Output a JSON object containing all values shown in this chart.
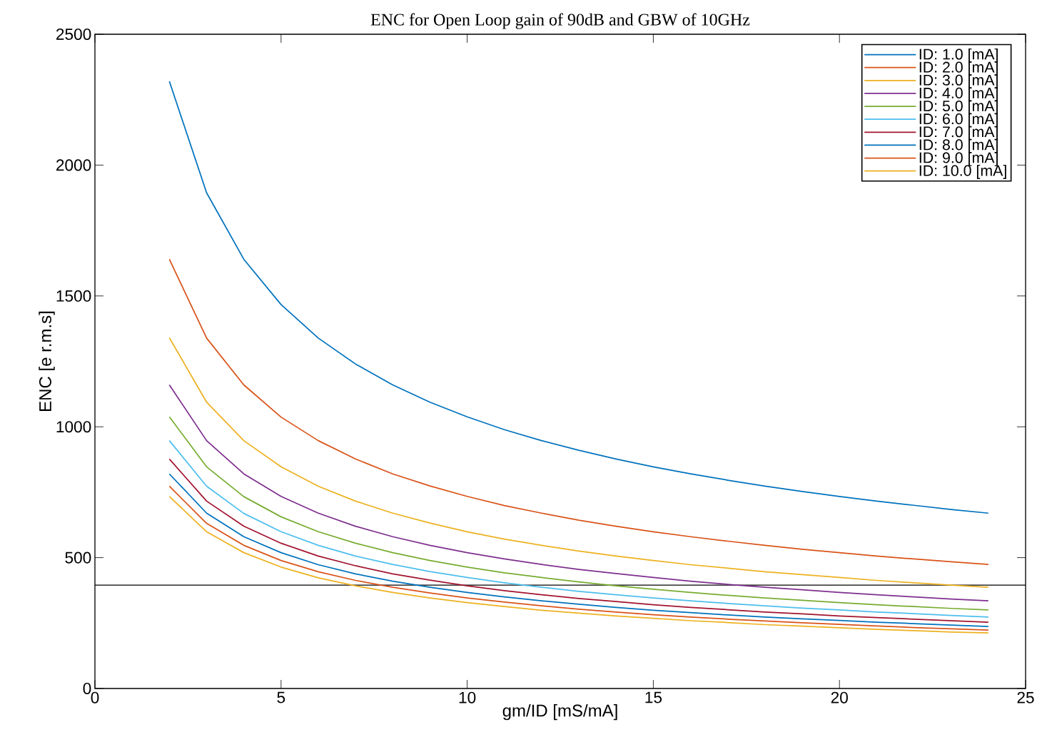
{
  "chart_data": {
    "type": "line",
    "title": "ENC for Open Loop gain of 90dB and GBW of 10GHz",
    "xlabel": "gm/ID [mS/mA]",
    "ylabel": "ENC [e r.m.s]",
    "x": [
      2,
      3,
      4,
      5,
      6,
      7,
      8,
      9,
      10,
      11,
      12,
      13,
      14,
      15,
      16,
      17,
      18,
      19,
      20,
      21,
      22,
      23,
      24
    ],
    "series": [
      {
        "name": "ID: 1.0 [mA]",
        "color": "#0072bd",
        "values": [
          2320,
          1894,
          1640,
          1467,
          1339,
          1240,
          1160,
          1094,
          1038,
          989,
          947,
          910,
          877,
          847,
          820,
          796,
          773,
          753,
          734,
          716,
          700,
          684,
          670
        ]
      },
      {
        "name": "ID: 2.0 [mA]",
        "color": "#d95319",
        "values": [
          1640,
          1339,
          1160,
          1037,
          947,
          877,
          820,
          774,
          734,
          699,
          670,
          643,
          620,
          599,
          580,
          563,
          547,
          532,
          519,
          506,
          495,
          484,
          474
        ]
      },
      {
        "name": "ID: 3.0 [mA]",
        "color": "#edb120",
        "values": [
          1340,
          1094,
          947,
          847,
          773,
          716,
          670,
          632,
          599,
          571,
          547,
          525,
          506,
          489,
          473,
          460,
          446,
          435,
          424,
          413,
          404,
          395,
          387
        ]
      },
      {
        "name": "ID: 4.0 [mA]",
        "color": "#7e2f8e",
        "values": [
          1160,
          947,
          820,
          734,
          670,
          620,
          580,
          547,
          519,
          495,
          474,
          455,
          439,
          424,
          410,
          398,
          387,
          377,
          367,
          358,
          350,
          342,
          335
        ]
      },
      {
        "name": "ID: 5.0 [mA]",
        "color": "#77ac30",
        "values": [
          1038,
          847,
          733,
          656,
          599,
          555,
          519,
          489,
          464,
          442,
          424,
          407,
          392,
          379,
          367,
          356,
          346,
          337,
          328,
          320,
          313,
          306,
          300
        ]
      },
      {
        "name": "ID: 6.0 [mA]",
        "color": "#4dbeee",
        "values": [
          947,
          773,
          669,
          599,
          547,
          506,
          474,
          447,
          424,
          404,
          387,
          371,
          358,
          346,
          335,
          325,
          316,
          307,
          300,
          292,
          286,
          279,
          273
        ]
      },
      {
        "name": "ID: 7.0 [mA]",
        "color": "#a2142f",
        "values": [
          877,
          716,
          620,
          555,
          506,
          469,
          438,
          414,
          392,
          374,
          358,
          344,
          332,
          320,
          310,
          301,
          292,
          285,
          277,
          271,
          265,
          259,
          253
        ]
      },
      {
        "name": "ID: 8.0 [mA]",
        "color": "#0072bd",
        "values": [
          820,
          670,
          580,
          519,
          473,
          438,
          410,
          387,
          367,
          350,
          335,
          322,
          310,
          299,
          290,
          281,
          273,
          266,
          260,
          253,
          248,
          242,
          237
        ]
      },
      {
        "name": "ID: 9.0 [mA]",
        "color": "#d95319",
        "values": [
          773,
          631,
          547,
          489,
          446,
          413,
          387,
          365,
          346,
          330,
          316,
          303,
          292,
          282,
          273,
          265,
          258,
          251,
          245,
          239,
          233,
          228,
          223
        ]
      },
      {
        "name": "ID: 10.0 [mA]",
        "color": "#edb120",
        "values": [
          734,
          599,
          519,
          464,
          423,
          392,
          367,
          346,
          328,
          313,
          299,
          288,
          277,
          268,
          259,
          252,
          244,
          238,
          232,
          226,
          221,
          216,
          212
        ]
      }
    ],
    "xlim": [
      0,
      25
    ],
    "xticks": [
      0,
      5,
      10,
      15,
      20,
      25
    ],
    "ylim": [
      0,
      2500
    ],
    "yticks": [
      0,
      500,
      1000,
      1500,
      2000,
      2500
    ],
    "ref_lines": [
      {
        "axis": "y",
        "value": 395,
        "color": "#000000"
      }
    ],
    "legend": "top right",
    "grid": false,
    "marker": "none",
    "line_style": "solid"
  }
}
